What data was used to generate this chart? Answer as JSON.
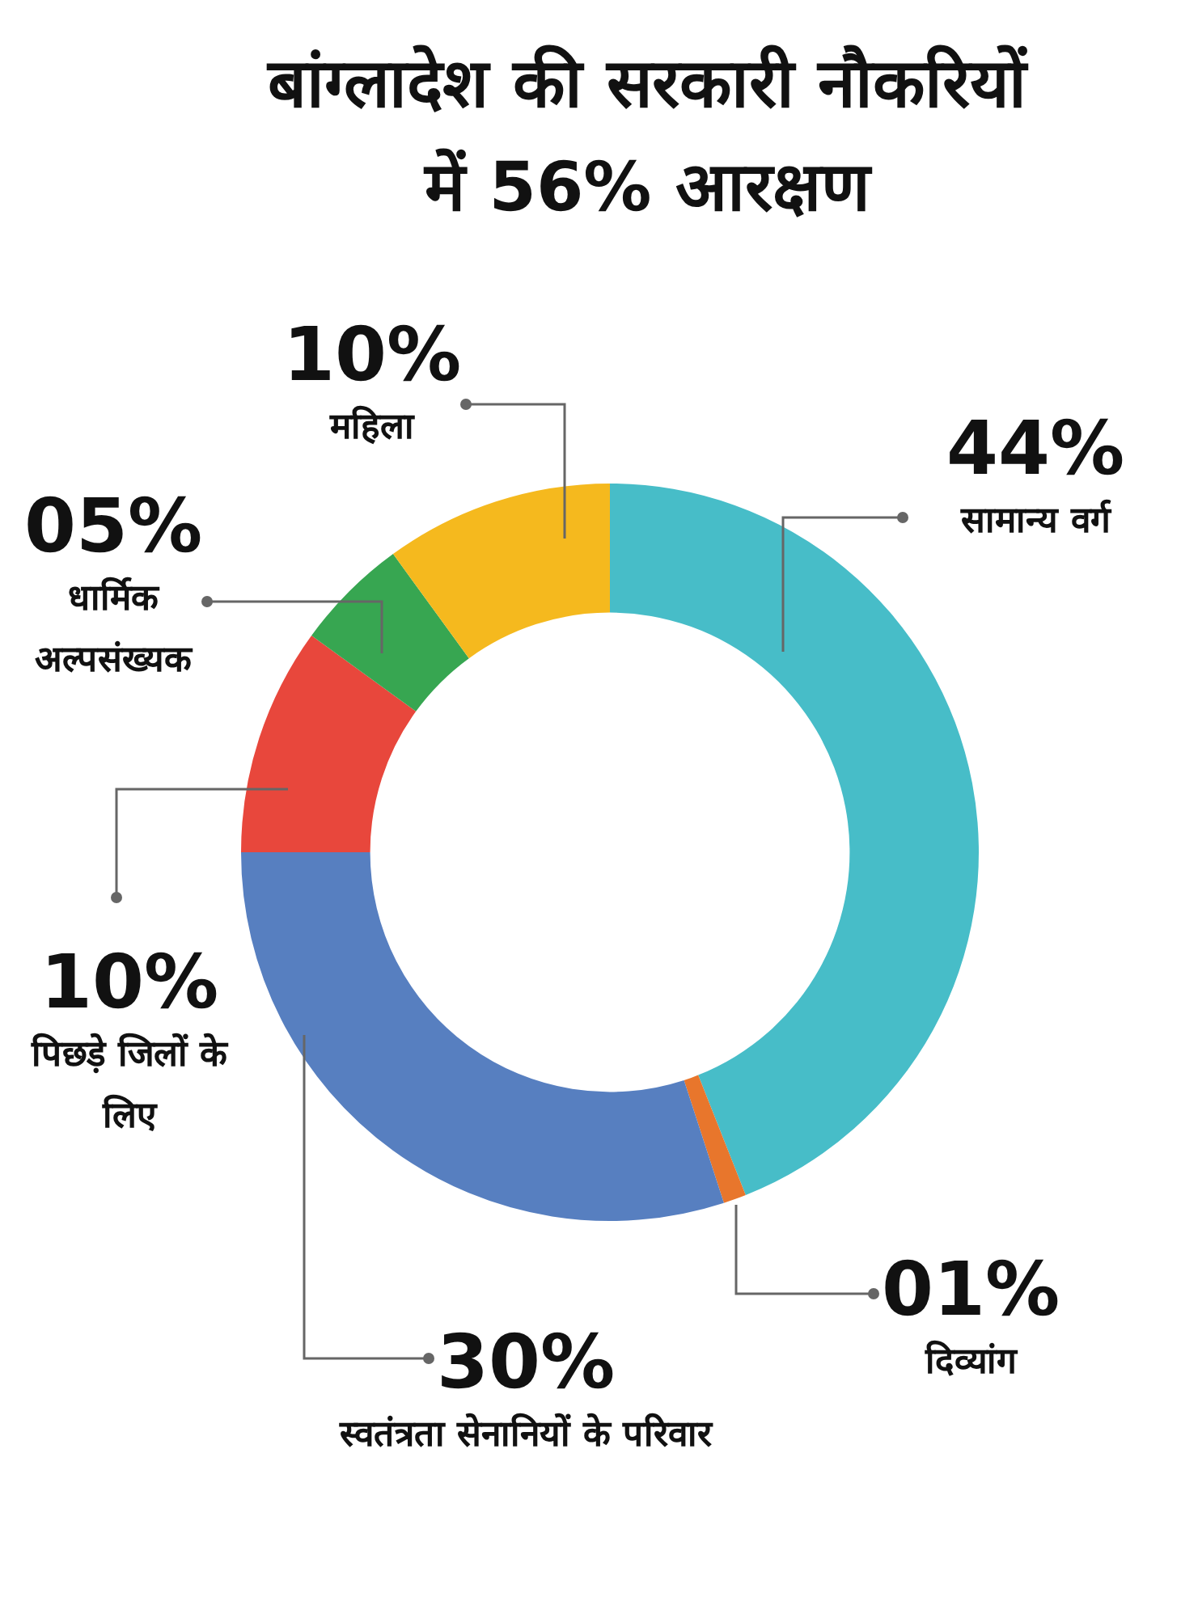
{
  "chart_data": {
    "type": "donut",
    "title": "बांग्लादेश की सरकारी नौकरियों में 56% आरक्षण",
    "categories": [
      "सामान्य वर्ग",
      "दिव्यांग",
      "स्वतंत्रता सेनानियों के परिवार",
      "पिछड़े जिलों के लिए",
      "धार्मिक अल्पसंख्यक",
      "महिला"
    ],
    "values": [
      44,
      1,
      30,
      10,
      5,
      10
    ],
    "value_labels": [
      "44%",
      "01%",
      "30%",
      "10%",
      "05%",
      "10%"
    ],
    "colors": [
      "#47bdc8",
      "#e8762c",
      "#577fc0",
      "#e8473c",
      "#37a651",
      "#f5b91e"
    ],
    "legend": false
  }
}
